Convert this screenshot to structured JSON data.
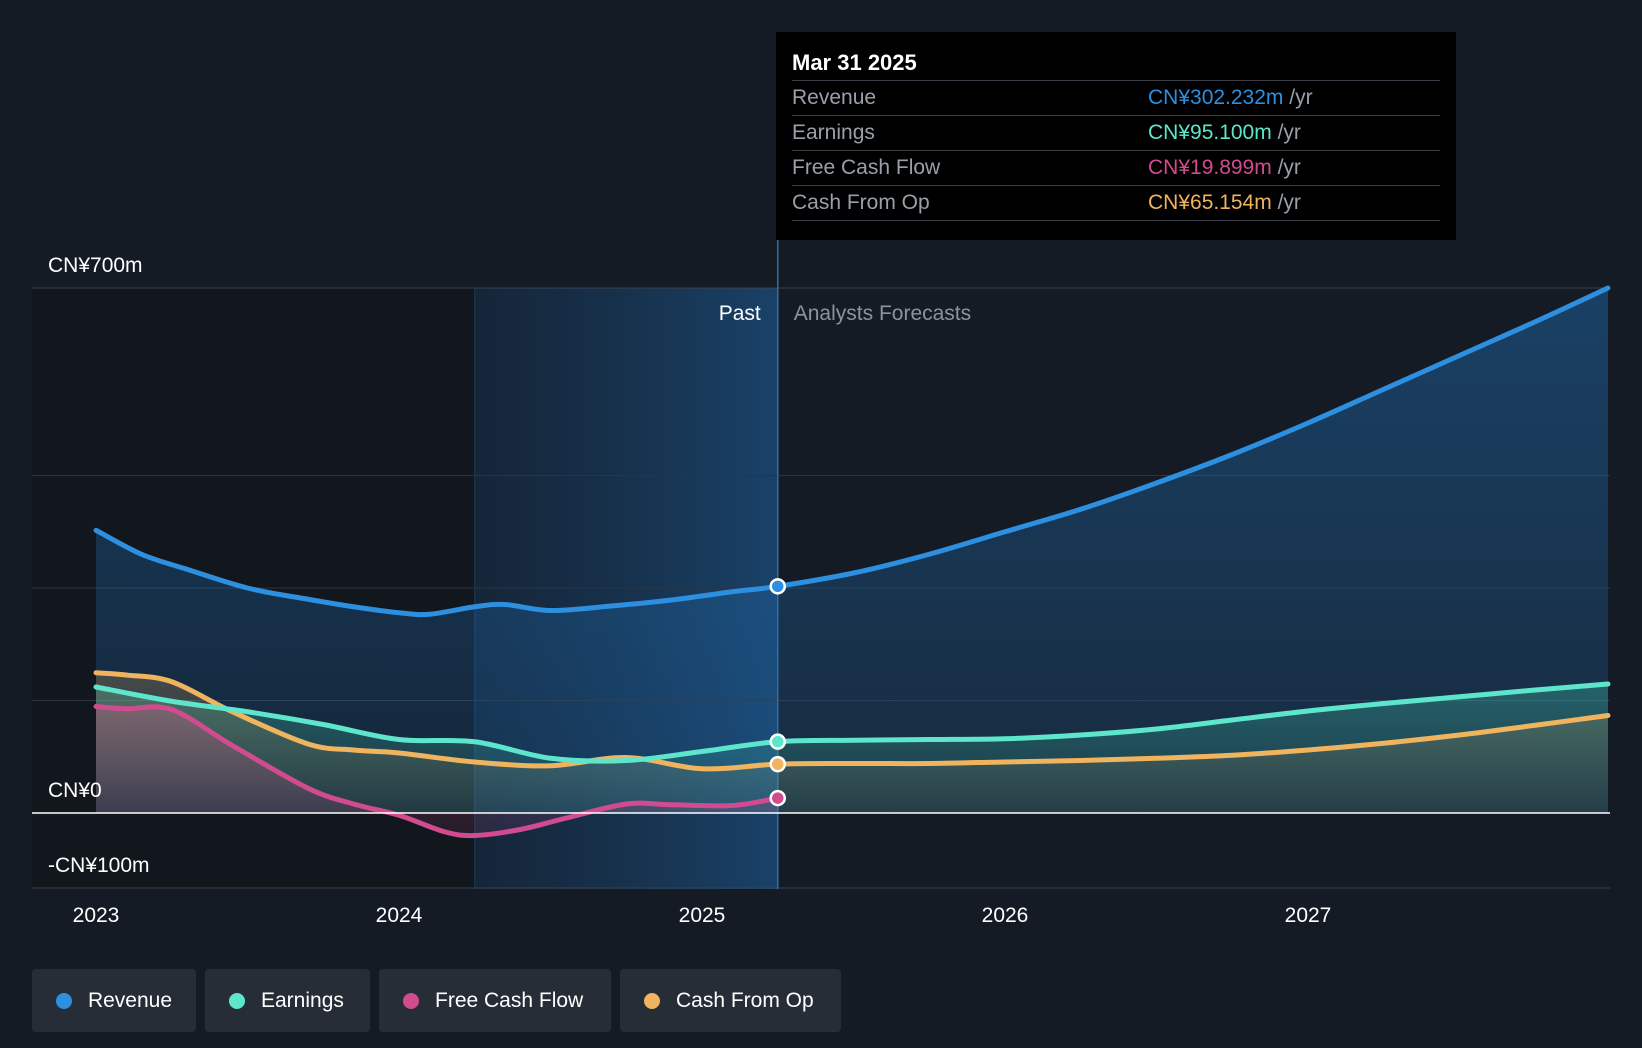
{
  "chart_data": {
    "type": "area",
    "title": "",
    "x_ticks": [
      "2023",
      "2024",
      "2025",
      "2026",
      "2027"
    ],
    "y_labels": [
      "CN¥700m",
      "CN¥0",
      "-CN¥100m"
    ],
    "y_values_for_labels": [
      700,
      0,
      -100
    ],
    "ylim": [
      -100,
      700
    ],
    "xlim": [
      2022.79,
      2027.99
    ],
    "units": "CN¥ millions",
    "past_label": "Past",
    "forecast_label": "Analysts Forecasts",
    "past_shade_start": 2024.25,
    "divider_x": 2025.25,
    "series": [
      {
        "name": "Revenue",
        "color": "#2d8fe0",
        "x": [
          2023.0,
          2023.15,
          2023.3,
          2023.5,
          2023.7,
          2023.85,
          2024.0,
          2024.1,
          2024.25,
          2024.35,
          2024.5,
          2024.7,
          2024.9,
          2025.1,
          2025.25,
          2025.5,
          2025.75,
          2026.0,
          2026.25,
          2026.5,
          2026.75,
          2027.0,
          2027.25,
          2027.5,
          2027.75,
          2027.99
        ],
        "values": [
          377,
          345,
          325,
          300,
          285,
          275,
          267,
          265,
          275,
          278,
          270,
          276,
          284,
          295,
          302.232,
          320,
          345,
          375,
          405,
          440,
          478,
          520,
          565,
          610,
          655,
          700
        ]
      },
      {
        "name": "Earnings",
        "color": "#5ee6cd",
        "x": [
          2023.0,
          2023.25,
          2023.5,
          2023.75,
          2024.0,
          2024.25,
          2024.5,
          2024.75,
          2025.0,
          2025.25,
          2025.5,
          2025.75,
          2026.0,
          2026.25,
          2026.5,
          2026.75,
          2027.0,
          2027.25,
          2027.5,
          2027.75,
          2027.99
        ],
        "values": [
          168,
          149,
          135,
          118,
          98,
          95,
          73,
          70,
          82,
          95.1,
          97,
          98,
          99,
          104,
          112,
          124,
          136,
          146,
          155,
          164,
          172
        ]
      },
      {
        "name": "Free Cash Flow",
        "color": "#d14b8f",
        "x": [
          2023.0,
          2023.1,
          2023.25,
          2023.45,
          2023.7,
          2023.85,
          2024.0,
          2024.15,
          2024.25,
          2024.4,
          2024.55,
          2024.75,
          2024.9,
          2025.1,
          2025.25
        ],
        "values": [
          142,
          139,
          138,
          90,
          33,
          12,
          -3,
          -25,
          -30,
          -22,
          -7,
          12,
          11,
          10,
          19.899
        ]
      },
      {
        "name": "Cash From Op",
        "color": "#f0b35e",
        "x": [
          2023.0,
          2023.1,
          2023.25,
          2023.45,
          2023.7,
          2023.85,
          2024.0,
          2024.25,
          2024.5,
          2024.75,
          2025.0,
          2025.25,
          2025.5,
          2025.75,
          2026.0,
          2026.25,
          2026.5,
          2026.75,
          2027.0,
          2027.25,
          2027.5,
          2027.75,
          2027.99
        ],
        "values": [
          187,
          184,
          175,
          135,
          92,
          84,
          80,
          68,
          63,
          74,
          59,
          65.154,
          66,
          66,
          68,
          70,
          73,
          77,
          84,
          93,
          104,
          117,
          130
        ]
      }
    ]
  },
  "tooltip": {
    "date": "Mar 31 2025",
    "rows": [
      {
        "label": "Revenue",
        "value": "CN¥302.232m",
        "unit": "/yr",
        "color": "#2d8fe0"
      },
      {
        "label": "Earnings",
        "value": "CN¥95.100m",
        "unit": "/yr",
        "color": "#5ee6cd"
      },
      {
        "label": "Free Cash Flow",
        "value": "CN¥19.899m",
        "unit": "/yr",
        "color": "#d14b8f"
      },
      {
        "label": "Cash From Op",
        "value": "CN¥65.154m",
        "unit": "/yr",
        "color": "#f0b35e"
      }
    ]
  },
  "legend": [
    {
      "label": "Revenue",
      "color": "#2d8fe0"
    },
    {
      "label": "Earnings",
      "color": "#5ee6cd"
    },
    {
      "label": "Free Cash Flow",
      "color": "#d14b8f"
    },
    {
      "label": "Cash From Op",
      "color": "#f0b35e"
    }
  ]
}
